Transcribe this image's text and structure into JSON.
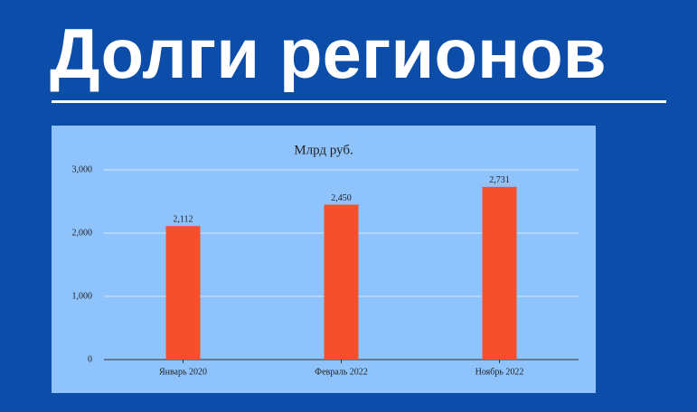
{
  "slide_title": "Долги регионов",
  "chart_data": {
    "type": "bar",
    "title": "Млрд руб.",
    "categories": [
      "Январь 2020",
      "Февраль 2022",
      "Ноябрь 2022"
    ],
    "values": [
      2112,
      2450,
      2731
    ],
    "value_labels": [
      "2,112",
      "2,450",
      "2,731"
    ],
    "color": "#f4502e",
    "ylim": [
      0,
      3000
    ],
    "yticks": [
      0,
      {
        "value": 1000,
        "label": "1,000"
      },
      {
        "value": 2000,
        "label": "2,000"
      },
      {
        "value": 3000,
        "label": "3,000"
      }
    ],
    "grid": true
  }
}
